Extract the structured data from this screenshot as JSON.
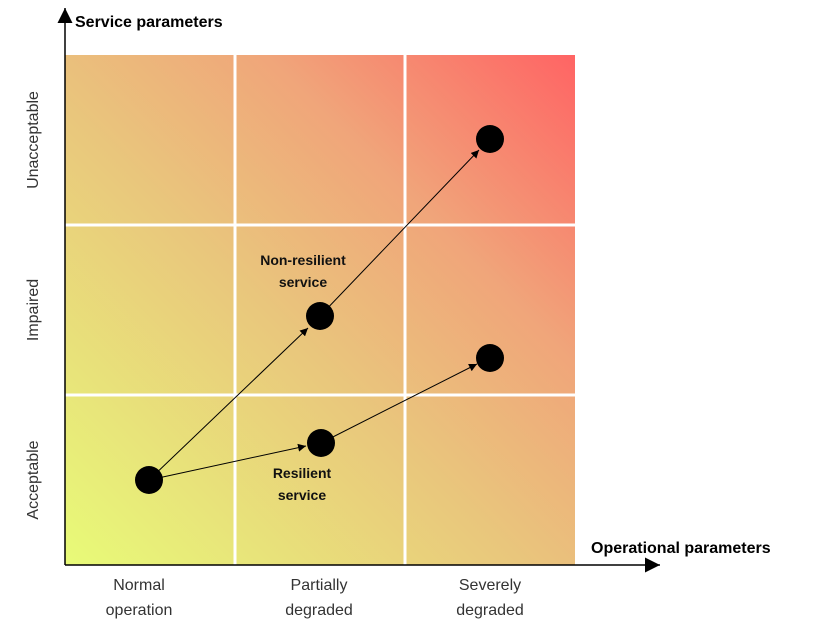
{
  "y_axis": {
    "title": "Service parameters",
    "levels": [
      "Acceptable",
      "Impaired",
      "Unacceptable"
    ]
  },
  "x_axis": {
    "title": "Operational parameters",
    "levels": [
      {
        "line1": "Normal",
        "line2": "operation"
      },
      {
        "line1": "Partially",
        "line2": "degraded"
      },
      {
        "line1": "Severely",
        "line2": "degraded"
      }
    ]
  },
  "colors": {
    "good": "#e6fa7a",
    "mid": "#efae7a",
    "bad": "#ff6a6a",
    "grid": "#ffffff",
    "marker": "#000000"
  },
  "labels": {
    "non_resilient_line1": "Non-resilient",
    "non_resilient_line2": "service",
    "resilient_line1": "Resilient",
    "resilient_line2": "service"
  }
}
